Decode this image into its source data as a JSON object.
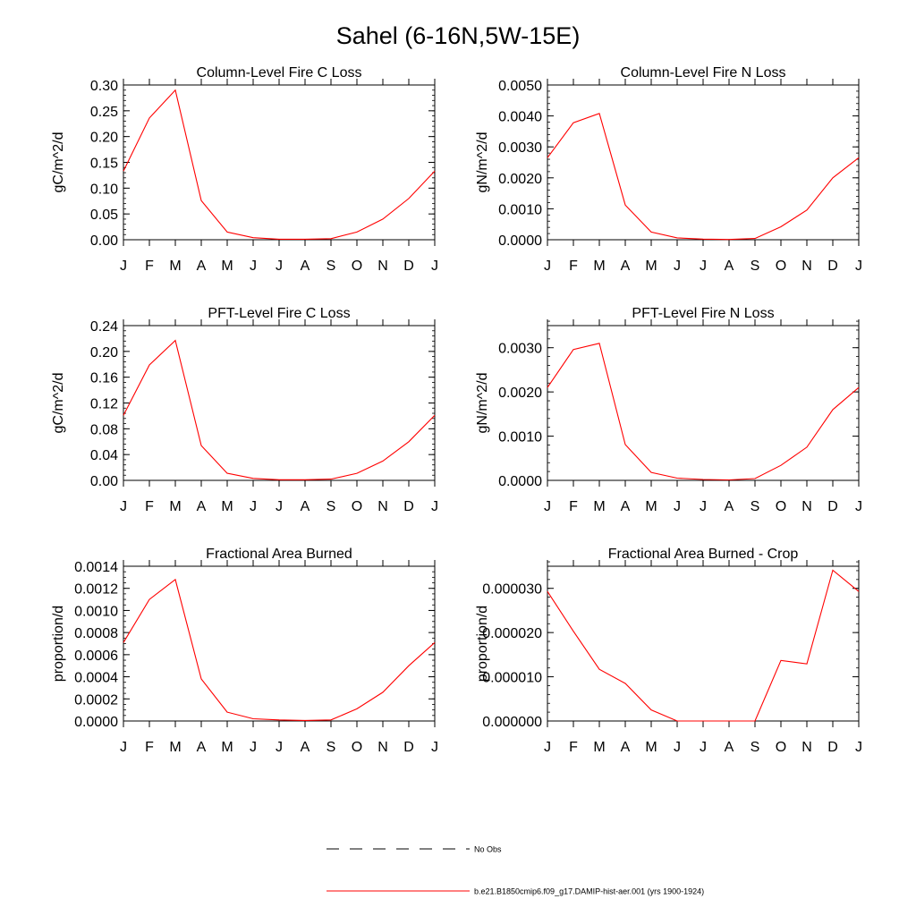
{
  "page_title": "Sahel (6-16N,5W-15E)",
  "month_labels": [
    "J",
    "F",
    "M",
    "A",
    "M",
    "J",
    "J",
    "A",
    "S",
    "O",
    "N",
    "D",
    "J"
  ],
  "line_color": "#ff0000",
  "chart_data": [
    {
      "type": "line",
      "title": "Column-Level Fire C Loss",
      "ylabel": "gC/m^2/d",
      "ylim": [
        0,
        0.3
      ],
      "yticks": [
        "0.00",
        "0.05",
        "0.10",
        "0.15",
        "0.20",
        "0.25",
        "0.30"
      ],
      "y_minor_step": 0.01,
      "series": [
        {
          "name": "b.e21.B1850cmip6.f09_g17.DAMIP-hist-aer.001 (yrs 1900-1924)",
          "values": [
            0.133,
            0.236,
            0.29,
            0.076,
            0.015,
            0.004,
            0.001,
            0.001,
            0.002,
            0.015,
            0.04,
            0.08,
            0.133
          ]
        }
      ]
    },
    {
      "type": "line",
      "title": "Column-Level Fire N Loss",
      "ylabel": "gN/m^2/d",
      "ylim": [
        0,
        0.005
      ],
      "yticks": [
        "0.0000",
        "0.0010",
        "0.0020",
        "0.0030",
        "0.0040",
        "0.0050"
      ],
      "y_minor_step": 0.0002,
      "series": [
        {
          "name": "b.e21.B1850cmip6.f09_g17.DAMIP-hist-aer.001 (yrs 1900-1924)",
          "values": [
            0.00265,
            0.00378,
            0.00408,
            0.00112,
            0.00025,
            6e-05,
            2e-05,
            1e-05,
            4e-05,
            0.00042,
            0.00096,
            0.002,
            0.00265
          ]
        }
      ]
    },
    {
      "type": "line",
      "title": "PFT-Level Fire C Loss",
      "ylabel": "gC/m^2/d",
      "ylim": [
        0,
        0.24
      ],
      "yticks": [
        "0.00",
        "0.04",
        "0.08",
        "0.12",
        "0.16",
        "0.20",
        "0.24"
      ],
      "y_minor_step": 0.008,
      "series": [
        {
          "name": "b.e21.B1850cmip6.f09_g17.DAMIP-hist-aer.001 (yrs 1900-1924)",
          "values": [
            0.101,
            0.179,
            0.217,
            0.054,
            0.011,
            0.003,
            0.001,
            0.001,
            0.002,
            0.011,
            0.03,
            0.06,
            0.101
          ]
        }
      ]
    },
    {
      "type": "line",
      "title": "PFT-Level Fire N Loss",
      "ylabel": "gN/m^2/d",
      "ylim": [
        0,
        0.0035
      ],
      "yticks": [
        "0.0000",
        "0.0010",
        "0.0020",
        "0.0030"
      ],
      "y_minor_step": 0.0002,
      "series": [
        {
          "name": "b.e21.B1850cmip6.f09_g17.DAMIP-hist-aer.001 (yrs 1900-1924)",
          "values": [
            0.0021,
            0.00296,
            0.0031,
            0.00081,
            0.00018,
            5e-05,
            2e-05,
            1e-05,
            4e-05,
            0.00034,
            0.00075,
            0.0016,
            0.0021
          ]
        }
      ]
    },
    {
      "type": "line",
      "title": "Fractional Area Burned",
      "ylabel": "proportion/d",
      "ylim": [
        0,
        0.0014
      ],
      "yticks": [
        "0.0000",
        "0.0002",
        "0.0004",
        "0.0006",
        "0.0008",
        "0.0010",
        "0.0012",
        "0.0014"
      ],
      "y_minor_step": 5e-05,
      "series": [
        {
          "name": "b.e21.B1850cmip6.f09_g17.DAMIP-hist-aer.001 (yrs 1900-1924)",
          "values": [
            0.00071,
            0.0011,
            0.00128,
            0.00038,
            8e-05,
            2e-05,
            1e-05,
            5e-06,
            1e-05,
            0.00011,
            0.00026,
            0.0005,
            0.00071
          ]
        }
      ]
    },
    {
      "type": "line",
      "title": "Fractional Area Burned - Crop",
      "ylabel": "proportion/d",
      "ylim": [
        0,
        3.5e-05
      ],
      "yticks": [
        "0.000000",
        "0.000010",
        "0.000020",
        "0.000030"
      ],
      "y_minor_step": 2e-06,
      "series": [
        {
          "name": "b.e21.B1850cmip6.f09_g17.DAMIP-hist-aer.001 (yrs 1900-1924)",
          "values": [
            2.93e-05,
            2.03e-05,
            1.17e-05,
            8.5e-06,
            2.5e-06,
            0.0,
            0.0,
            0.0,
            0.0,
            1.37e-05,
            1.29e-05,
            3.41e-05,
            2.93e-05
          ]
        }
      ]
    }
  ],
  "legend": {
    "placement": "bottom-center",
    "entries": [
      {
        "label": "No Obs",
        "style": "dashed",
        "color": "#000000"
      },
      {
        "label": "b.e21.B1850cmip6.f09_g17.DAMIP-hist-aer.001 (yrs 1900-1924)",
        "style": "solid",
        "color": "#ff0000"
      }
    ]
  }
}
